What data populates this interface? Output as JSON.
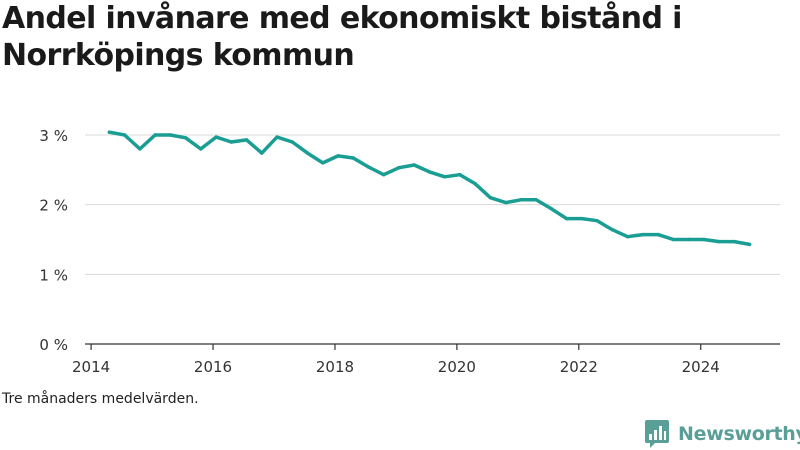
{
  "title": "Andel invånare med ekonomiskt bistånd i Norrköpings kommun",
  "note": "Tre månaders medelvärden.",
  "brand": {
    "name": "Newsworthy",
    "icon": "newsworthy-logo-icon",
    "color": "#5a9e98"
  },
  "colors": {
    "line": "#1a9e94",
    "grid": "#d9d9d9",
    "axis": "#333333",
    "text": "#333333"
  },
  "chart_data": {
    "type": "line",
    "title": "Andel invånare med ekonomiskt bistånd i Norrköpings kommun",
    "xlabel": "",
    "ylabel": "",
    "xlim": [
      2013.9,
      2025.3
    ],
    "ylim": [
      0,
      3
    ],
    "x_ticks": [
      2014,
      2016,
      2018,
      2020,
      2022,
      2024
    ],
    "y_ticks": [
      {
        "value": 0,
        "label": "0 %"
      },
      {
        "value": 1,
        "label": "1 %"
      },
      {
        "value": 2,
        "label": "2 %"
      },
      {
        "value": 3,
        "label": "3 %"
      }
    ],
    "grid": true,
    "series": [
      {
        "color": "#1a9e94",
        "points": [
          [
            2014.3,
            3.04
          ],
          [
            2014.55,
            3.0
          ],
          [
            2014.8,
            2.8
          ],
          [
            2015.05,
            3.0
          ],
          [
            2015.3,
            3.0
          ],
          [
            2015.55,
            2.96
          ],
          [
            2015.8,
            2.8
          ],
          [
            2016.05,
            2.97
          ],
          [
            2016.3,
            2.9
          ],
          [
            2016.55,
            2.93
          ],
          [
            2016.8,
            2.74
          ],
          [
            2017.05,
            2.97
          ],
          [
            2017.3,
            2.9
          ],
          [
            2017.55,
            2.74
          ],
          [
            2017.8,
            2.6
          ],
          [
            2018.05,
            2.7
          ],
          [
            2018.3,
            2.67
          ],
          [
            2018.55,
            2.54
          ],
          [
            2018.8,
            2.43
          ],
          [
            2019.05,
            2.53
          ],
          [
            2019.3,
            2.57
          ],
          [
            2019.55,
            2.47
          ],
          [
            2019.8,
            2.4
          ],
          [
            2020.05,
            2.43
          ],
          [
            2020.3,
            2.3
          ],
          [
            2020.55,
            2.1
          ],
          [
            2020.8,
            2.03
          ],
          [
            2021.05,
            2.07
          ],
          [
            2021.3,
            2.07
          ],
          [
            2021.55,
            1.94
          ],
          [
            2021.8,
            1.8
          ],
          [
            2022.05,
            1.8
          ],
          [
            2022.3,
            1.77
          ],
          [
            2022.55,
            1.64
          ],
          [
            2022.8,
            1.54
          ],
          [
            2023.05,
            1.57
          ],
          [
            2023.3,
            1.57
          ],
          [
            2023.55,
            1.5
          ],
          [
            2023.8,
            1.5
          ],
          [
            2024.05,
            1.5
          ],
          [
            2024.3,
            1.47
          ],
          [
            2024.55,
            1.47
          ],
          [
            2024.8,
            1.43
          ]
        ]
      }
    ]
  }
}
